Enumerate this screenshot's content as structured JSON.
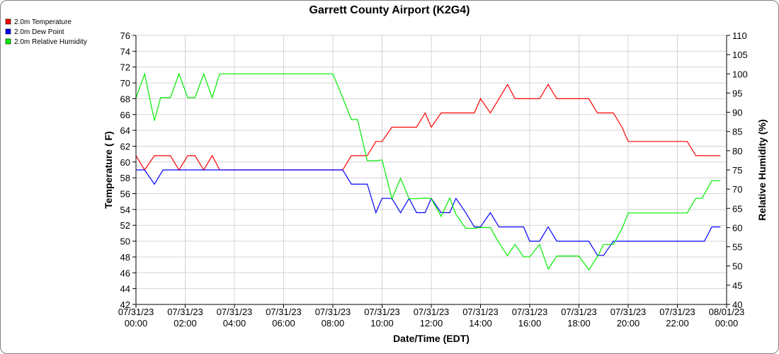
{
  "chart_data": {
    "type": "line",
    "title": "Garrett County Airport (K2G4)",
    "xlabel": "Date/Time (EDT)",
    "ylabel_left": "Temperature ( F)",
    "ylabel_right": "Relative Humidity (%)",
    "ylim_left": [
      42,
      76
    ],
    "ylim_right": [
      40,
      110
    ],
    "xlim_hours": [
      0,
      24
    ],
    "grid": true,
    "legend_position": "top-left",
    "x_ticks": [
      {
        "hour": 0,
        "date": "07/31/23",
        "time": "00:00"
      },
      {
        "hour": 2,
        "date": "07/31/23",
        "time": "02:00"
      },
      {
        "hour": 4,
        "date": "07/31/23",
        "time": "04:00"
      },
      {
        "hour": 6,
        "date": "07/31/23",
        "time": "06:00"
      },
      {
        "hour": 8,
        "date": "07/31/23",
        "time": "08:00"
      },
      {
        "hour": 10,
        "date": "07/31/23",
        "time": "10:00"
      },
      {
        "hour": 12,
        "date": "07/31/23",
        "time": "12:00"
      },
      {
        "hour": 14,
        "date": "07/31/23",
        "time": "14:00"
      },
      {
        "hour": 16,
        "date": "07/31/23",
        "time": "16:00"
      },
      {
        "hour": 18,
        "date": "07/31/23",
        "time": "18:00"
      },
      {
        "hour": 20,
        "date": "07/31/23",
        "time": "20:00"
      },
      {
        "hour": 22,
        "date": "07/31/23",
        "time": "22:00"
      },
      {
        "hour": 24,
        "date": "08/01/23",
        "time": "00:00"
      }
    ],
    "y_ticks_left": [
      42,
      44,
      46,
      48,
      50,
      52,
      54,
      56,
      58,
      60,
      62,
      64,
      66,
      68,
      70,
      72,
      74,
      76
    ],
    "y_ticks_right": [
      40,
      45,
      50,
      55,
      60,
      65,
      70,
      75,
      80,
      85,
      90,
      95,
      100,
      105,
      110
    ],
    "series": [
      {
        "name": "2.0m Temperature",
        "axis": "left",
        "color": "#ff0000",
        "points": [
          [
            0.0,
            60.8
          ],
          [
            0.35,
            59.0
          ],
          [
            0.75,
            60.8
          ],
          [
            1.0,
            60.8
          ],
          [
            1.4,
            60.8
          ],
          [
            1.75,
            59.0
          ],
          [
            2.1,
            60.8
          ],
          [
            2.4,
            60.8
          ],
          [
            2.75,
            59.0
          ],
          [
            3.1,
            60.8
          ],
          [
            3.4,
            59.0
          ],
          [
            8.0,
            59.0
          ],
          [
            8.4,
            59.0
          ],
          [
            8.75,
            60.8
          ],
          [
            9.0,
            60.8
          ],
          [
            9.4,
            60.8
          ],
          [
            9.75,
            62.6
          ],
          [
            10.0,
            62.6
          ],
          [
            10.4,
            64.4
          ],
          [
            10.75,
            64.4
          ],
          [
            11.0,
            64.4
          ],
          [
            11.4,
            64.4
          ],
          [
            11.75,
            66.2
          ],
          [
            12.0,
            64.4
          ],
          [
            12.4,
            66.2
          ],
          [
            12.75,
            66.2
          ],
          [
            13.0,
            66.2
          ],
          [
            13.4,
            66.2
          ],
          [
            13.75,
            66.2
          ],
          [
            14.0,
            68.0
          ],
          [
            14.4,
            66.2
          ],
          [
            14.75,
            68.0
          ],
          [
            15.1,
            69.8
          ],
          [
            15.4,
            68.0
          ],
          [
            15.75,
            68.0
          ],
          [
            16.0,
            68.0
          ],
          [
            16.4,
            68.0
          ],
          [
            16.75,
            69.8
          ],
          [
            17.1,
            68.0
          ],
          [
            17.4,
            68.0
          ],
          [
            17.75,
            68.0
          ],
          [
            18.0,
            68.0
          ],
          [
            18.4,
            68.0
          ],
          [
            18.75,
            66.2
          ],
          [
            19.0,
            66.2
          ],
          [
            19.4,
            66.2
          ],
          [
            19.75,
            64.4
          ],
          [
            20.0,
            62.6
          ],
          [
            20.4,
            62.6
          ],
          [
            20.75,
            62.6
          ],
          [
            21.0,
            62.6
          ],
          [
            21.4,
            62.6
          ],
          [
            21.75,
            62.6
          ],
          [
            22.0,
            62.6
          ],
          [
            22.4,
            62.6
          ],
          [
            22.75,
            60.8
          ],
          [
            23.0,
            60.8
          ],
          [
            23.4,
            60.8
          ],
          [
            23.75,
            60.8
          ]
        ]
      },
      {
        "name": "2.0m Dew Point",
        "axis": "left",
        "color": "#0000ff",
        "points": [
          [
            0.0,
            59.0
          ],
          [
            0.35,
            59.0
          ],
          [
            0.75,
            57.2
          ],
          [
            1.1,
            59.0
          ],
          [
            1.4,
            59.0
          ],
          [
            3.4,
            59.0
          ],
          [
            8.0,
            59.0
          ],
          [
            8.4,
            59.0
          ],
          [
            8.75,
            57.2
          ],
          [
            9.0,
            57.2
          ],
          [
            9.4,
            57.2
          ],
          [
            9.75,
            53.6
          ],
          [
            10.0,
            55.4
          ],
          [
            10.4,
            55.4
          ],
          [
            10.75,
            53.6
          ],
          [
            11.1,
            55.4
          ],
          [
            11.4,
            53.6
          ],
          [
            11.75,
            53.6
          ],
          [
            12.0,
            55.4
          ],
          [
            12.4,
            53.6
          ],
          [
            12.75,
            53.6
          ],
          [
            13.0,
            55.4
          ],
          [
            13.4,
            53.6
          ],
          [
            13.75,
            51.8
          ],
          [
            14.0,
            51.8
          ],
          [
            14.4,
            53.6
          ],
          [
            14.75,
            51.8
          ],
          [
            15.1,
            51.8
          ],
          [
            15.4,
            51.8
          ],
          [
            15.75,
            51.8
          ],
          [
            16.0,
            50.0
          ],
          [
            16.4,
            50.0
          ],
          [
            16.75,
            51.8
          ],
          [
            17.1,
            50.0
          ],
          [
            17.4,
            50.0
          ],
          [
            17.75,
            50.0
          ],
          [
            18.0,
            50.0
          ],
          [
            18.4,
            50.0
          ],
          [
            18.75,
            48.2
          ],
          [
            19.0,
            48.2
          ],
          [
            19.4,
            50.0
          ],
          [
            19.75,
            50.0
          ],
          [
            20.0,
            50.0
          ],
          [
            21.0,
            50.0
          ],
          [
            22.0,
            50.0
          ],
          [
            22.75,
            50.0
          ],
          [
            23.1,
            50.0
          ],
          [
            23.4,
            51.8
          ],
          [
            23.75,
            51.8
          ]
        ]
      },
      {
        "name": "2.0m Relative Humidity",
        "axis": "right",
        "color": "#00ee00",
        "points": [
          [
            0.0,
            93.7
          ],
          [
            0.35,
            100.0
          ],
          [
            0.75,
            87.8
          ],
          [
            1.0,
            93.8
          ],
          [
            1.4,
            93.8
          ],
          [
            1.75,
            100.0
          ],
          [
            2.1,
            93.8
          ],
          [
            2.4,
            93.8
          ],
          [
            2.75,
            100.0
          ],
          [
            3.1,
            93.8
          ],
          [
            3.4,
            100.0
          ],
          [
            8.0,
            100.0
          ],
          [
            8.4,
            93.8
          ],
          [
            8.75,
            88.1
          ],
          [
            9.0,
            88.1
          ],
          [
            9.4,
            77.4
          ],
          [
            9.75,
            77.4
          ],
          [
            10.0,
            77.6
          ],
          [
            10.4,
            67.5
          ],
          [
            10.75,
            72.8
          ],
          [
            11.1,
            67.5
          ],
          [
            11.4,
            67.5
          ],
          [
            11.75,
            67.7
          ],
          [
            12.0,
            67.5
          ],
          [
            12.4,
            62.9
          ],
          [
            12.75,
            67.7
          ],
          [
            13.0,
            63.4
          ],
          [
            13.4,
            59.8
          ],
          [
            13.75,
            59.8
          ],
          [
            14.0,
            60.0
          ],
          [
            14.4,
            60.0
          ],
          [
            14.75,
            56.0
          ],
          [
            15.1,
            52.7
          ],
          [
            15.4,
            55.6
          ],
          [
            15.75,
            52.4
          ],
          [
            16.0,
            52.4
          ],
          [
            16.4,
            55.6
          ],
          [
            16.75,
            49.2
          ],
          [
            17.1,
            52.6
          ],
          [
            17.4,
            52.6
          ],
          [
            17.75,
            52.6
          ],
          [
            18.0,
            52.6
          ],
          [
            18.4,
            49.0
          ],
          [
            18.75,
            52.4
          ],
          [
            19.0,
            55.6
          ],
          [
            19.4,
            55.6
          ],
          [
            19.75,
            59.7
          ],
          [
            20.0,
            63.8
          ],
          [
            20.4,
            63.8
          ],
          [
            20.75,
            63.8
          ],
          [
            21.0,
            63.8
          ],
          [
            21.4,
            63.8
          ],
          [
            21.75,
            63.8
          ],
          [
            22.0,
            63.8
          ],
          [
            22.4,
            63.8
          ],
          [
            22.75,
            67.6
          ],
          [
            23.0,
            67.6
          ],
          [
            23.4,
            72.2
          ],
          [
            23.75,
            72.2
          ]
        ]
      }
    ]
  }
}
